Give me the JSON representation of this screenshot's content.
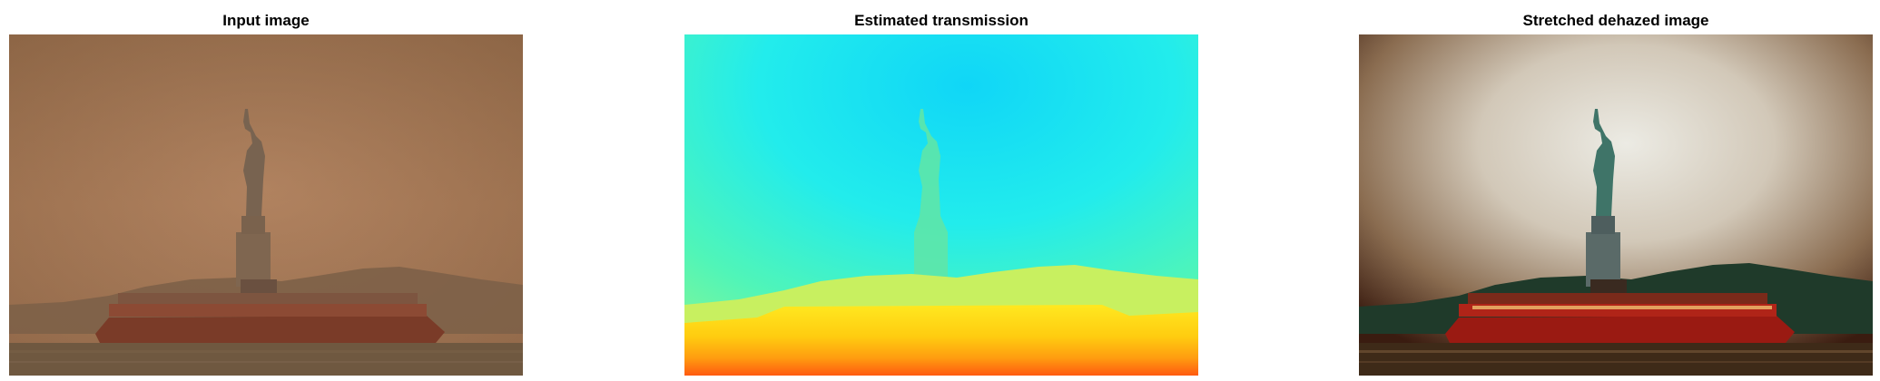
{
  "panels": [
    {
      "title": "Input image",
      "content": "hazy photo of Statue of Liberty and ferry"
    },
    {
      "title": "Estimated transmission",
      "content": "colormapped transmission map"
    },
    {
      "title": "Stretched dehazed image",
      "content": "dehazed photo of Statue of Liberty and ferry"
    }
  ],
  "colors": {
    "haze": "#a97b57",
    "transmission_sky": "#22e8f0",
    "transmission_ground": "#ffcf10",
    "ferry_red": "#b02418"
  }
}
